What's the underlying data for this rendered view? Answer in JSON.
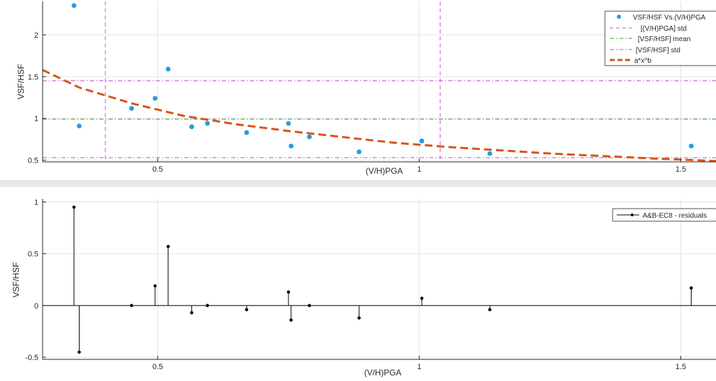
{
  "chart_data": [
    {
      "type": "scatter",
      "xlabel": "(V/H)PGA",
      "ylabel": "VSF/HSF",
      "xlim": [
        0.28,
        1.57
      ],
      "ylim": [
        0.48,
        2.4
      ],
      "xticks": [
        0.5,
        1,
        1.5
      ],
      "xtick_labels": [
        "0.5",
        "1",
        "1.5"
      ],
      "yticks": [
        0.5,
        1,
        1.5,
        2
      ],
      "ytick_labels": [
        "0.5",
        "1",
        "1.5",
        "2"
      ],
      "grid": true,
      "legend_position": "top-right",
      "legend": [
        "VSF/HSF Vs.(V/H)PGA",
        "[(V/H)PGA] std",
        "[VSF/HSF] mean",
        "[VSF/HSF] std",
        "a*x^b"
      ],
      "series": [
        {
          "name": "VSF/HSF Vs.(V/H)PGA",
          "kind": "scatter",
          "color": "#1f9de0",
          "x": [
            0.34,
            0.35,
            0.45,
            0.495,
            0.52,
            0.565,
            0.595,
            0.67,
            0.75,
            0.755,
            0.79,
            0.885,
            1.005,
            1.135,
            1.52
          ],
          "y": [
            2.35,
            0.91,
            1.12,
            1.24,
            1.59,
            0.9,
            0.94,
            0.83,
            0.94,
            0.67,
            0.78,
            0.6,
            0.73,
            0.58,
            0.67
          ]
        },
        {
          "name": "[(V/H)PGA] std",
          "kind": "vline",
          "color": "#d94fd9",
          "style": "dashed",
          "x": [
            0.4,
            1.04
          ]
        },
        {
          "name": "[VSF/HSF] mean",
          "kind": "hline",
          "color": "#2ca02c",
          "style": "dashdot",
          "y": [
            0.99
          ]
        },
        {
          "name": "[VSF/HSF] std",
          "kind": "hline",
          "color": "#c449c4",
          "style": "dashdot",
          "y": [
            0.53,
            1.45
          ]
        },
        {
          "name": "a*x^b",
          "kind": "curve",
          "color": "#d95319",
          "style": "dashed",
          "x": [
            0.28,
            0.35,
            0.45,
            0.55,
            0.65,
            0.75,
            0.85,
            0.95,
            1.05,
            1.15,
            1.25,
            1.35,
            1.45,
            1.57
          ],
          "y": [
            1.58,
            1.37,
            1.18,
            1.03,
            0.93,
            0.85,
            0.78,
            0.71,
            0.66,
            0.62,
            0.58,
            0.55,
            0.52,
            0.49
          ]
        }
      ]
    },
    {
      "type": "stem",
      "xlabel": "(V/H)PGA",
      "ylabel": "VSF/HSF",
      "xlim": [
        0.28,
        1.57
      ],
      "ylim": [
        -0.52,
        1.03
      ],
      "xticks": [
        0.5,
        1,
        1.5
      ],
      "xtick_labels": [
        "0.5",
        "1",
        "1.5"
      ],
      "yticks": [
        -0.5,
        0,
        0.5,
        1
      ],
      "ytick_labels": [
        "-0.5",
        "0",
        "0.5",
        "1"
      ],
      "grid": true,
      "legend_position": "top-right",
      "legend": [
        "A&B-EC8 - residuals"
      ],
      "series": [
        {
          "name": "A&B-EC8 - residuals",
          "color": "#000000",
          "x": [
            0.34,
            0.35,
            0.45,
            0.495,
            0.52,
            0.565,
            0.595,
            0.67,
            0.75,
            0.755,
            0.79,
            0.885,
            1.005,
            1.135,
            1.52
          ],
          "y": [
            0.95,
            -0.45,
            0.0,
            0.19,
            0.57,
            -0.07,
            0.0,
            -0.04,
            0.13,
            -0.14,
            0.0,
            -0.12,
            0.07,
            -0.04,
            0.17
          ]
        }
      ]
    }
  ]
}
